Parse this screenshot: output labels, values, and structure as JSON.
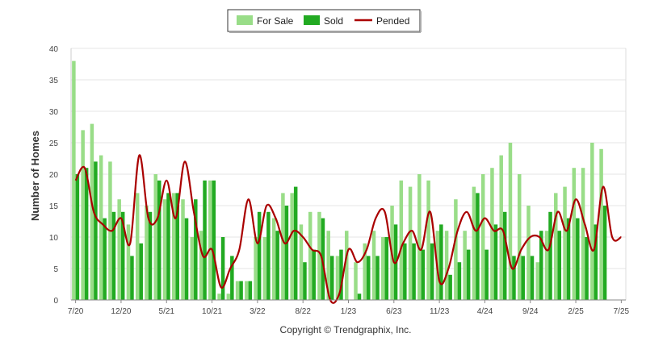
{
  "chart_data": {
    "type": "bar",
    "title": "",
    "xlabel": "",
    "ylabel": "Number of Homes",
    "ylim": [
      0,
      40
    ],
    "yticks": [
      0,
      5,
      10,
      15,
      20,
      25,
      30,
      35,
      40
    ],
    "grid": true,
    "legend_position": "top-center",
    "months": [
      "7/20",
      "8/20",
      "9/20",
      "10/20",
      "11/20",
      "12/20",
      "1/21",
      "2/21",
      "3/21",
      "4/21",
      "5/21",
      "6/21",
      "7/21",
      "8/21",
      "9/21",
      "10/21",
      "11/21",
      "12/21",
      "1/22",
      "2/22",
      "3/22",
      "4/22",
      "5/22",
      "6/22",
      "7/22",
      "8/22",
      "9/22",
      "10/22",
      "11/22",
      "12/22",
      "1/23",
      "2/23",
      "3/23",
      "4/23",
      "5/23",
      "6/23",
      "7/23",
      "8/23",
      "9/23",
      "10/23",
      "11/23",
      "12/23",
      "1/24",
      "2/24",
      "3/24",
      "4/24",
      "5/24",
      "6/24",
      "7/24",
      "8/24",
      "9/24",
      "10/24",
      "11/24",
      "12/24",
      "1/25",
      "2/25",
      "3/25",
      "4/25",
      "5/25",
      "6/25",
      "7/25"
    ],
    "x_tick_labels": [
      "7/20",
      "12/20",
      "5/21",
      "10/21",
      "3/22",
      "8/22",
      "1/23",
      "6/23",
      "11/23",
      "4/24",
      "9/24",
      "2/25",
      "7/25"
    ],
    "series": [
      {
        "name": "For Sale",
        "type": "bar",
        "color": "#99dd88",
        "values": [
          38,
          27,
          28,
          23,
          22,
          16,
          12,
          17,
          15,
          20,
          16,
          17,
          16,
          10,
          11,
          19,
          1,
          1,
          3,
          3,
          10,
          10,
          13,
          17,
          17,
          12,
          14,
          14,
          11,
          7,
          11,
          6,
          9,
          11,
          10,
          15,
          19,
          18,
          20,
          19,
          11,
          11,
          16,
          11,
          18,
          20,
          21,
          23,
          25,
          20,
          15,
          6,
          11,
          17,
          18,
          21,
          21,
          25,
          24,
          0,
          0
        ]
      },
      {
        "name": "Sold",
        "type": "bar",
        "color": "#22aa22",
        "values": [
          20,
          21,
          22,
          13,
          14,
          14,
          7,
          9,
          14,
          19,
          17,
          17,
          13,
          16,
          19,
          19,
          10,
          7,
          3,
          3,
          14,
          14,
          11,
          15,
          18,
          6,
          8,
          13,
          7,
          8,
          0,
          1,
          7,
          7,
          10,
          12,
          9,
          9,
          8,
          9,
          12,
          4,
          6,
          8,
          17,
          8,
          12,
          14,
          7,
          7,
          7,
          11,
          14,
          11,
          13,
          13,
          10,
          12,
          15,
          0,
          0
        ]
      },
      {
        "name": "Pended",
        "type": "line",
        "color": "#aa0000",
        "values": [
          19,
          21,
          14,
          12,
          11,
          13,
          9,
          23,
          13,
          13,
          19,
          13,
          22,
          14,
          7,
          8,
          2,
          5,
          8,
          16,
          9,
          15,
          13,
          9,
          11,
          10,
          8,
          7,
          0,
          1,
          8,
          6,
          8,
          13,
          14,
          6,
          9,
          11,
          8,
          14,
          3,
          5,
          11,
          14,
          11,
          13,
          11,
          11,
          5,
          8,
          10,
          10,
          8,
          14,
          11,
          16,
          12,
          8,
          18,
          10,
          10
        ]
      }
    ]
  },
  "legend": {
    "for_sale_label": "For Sale",
    "sold_label": "Sold",
    "pended_label": "Pended"
  },
  "copyright": "Copyright © Trendgraphix, Inc."
}
